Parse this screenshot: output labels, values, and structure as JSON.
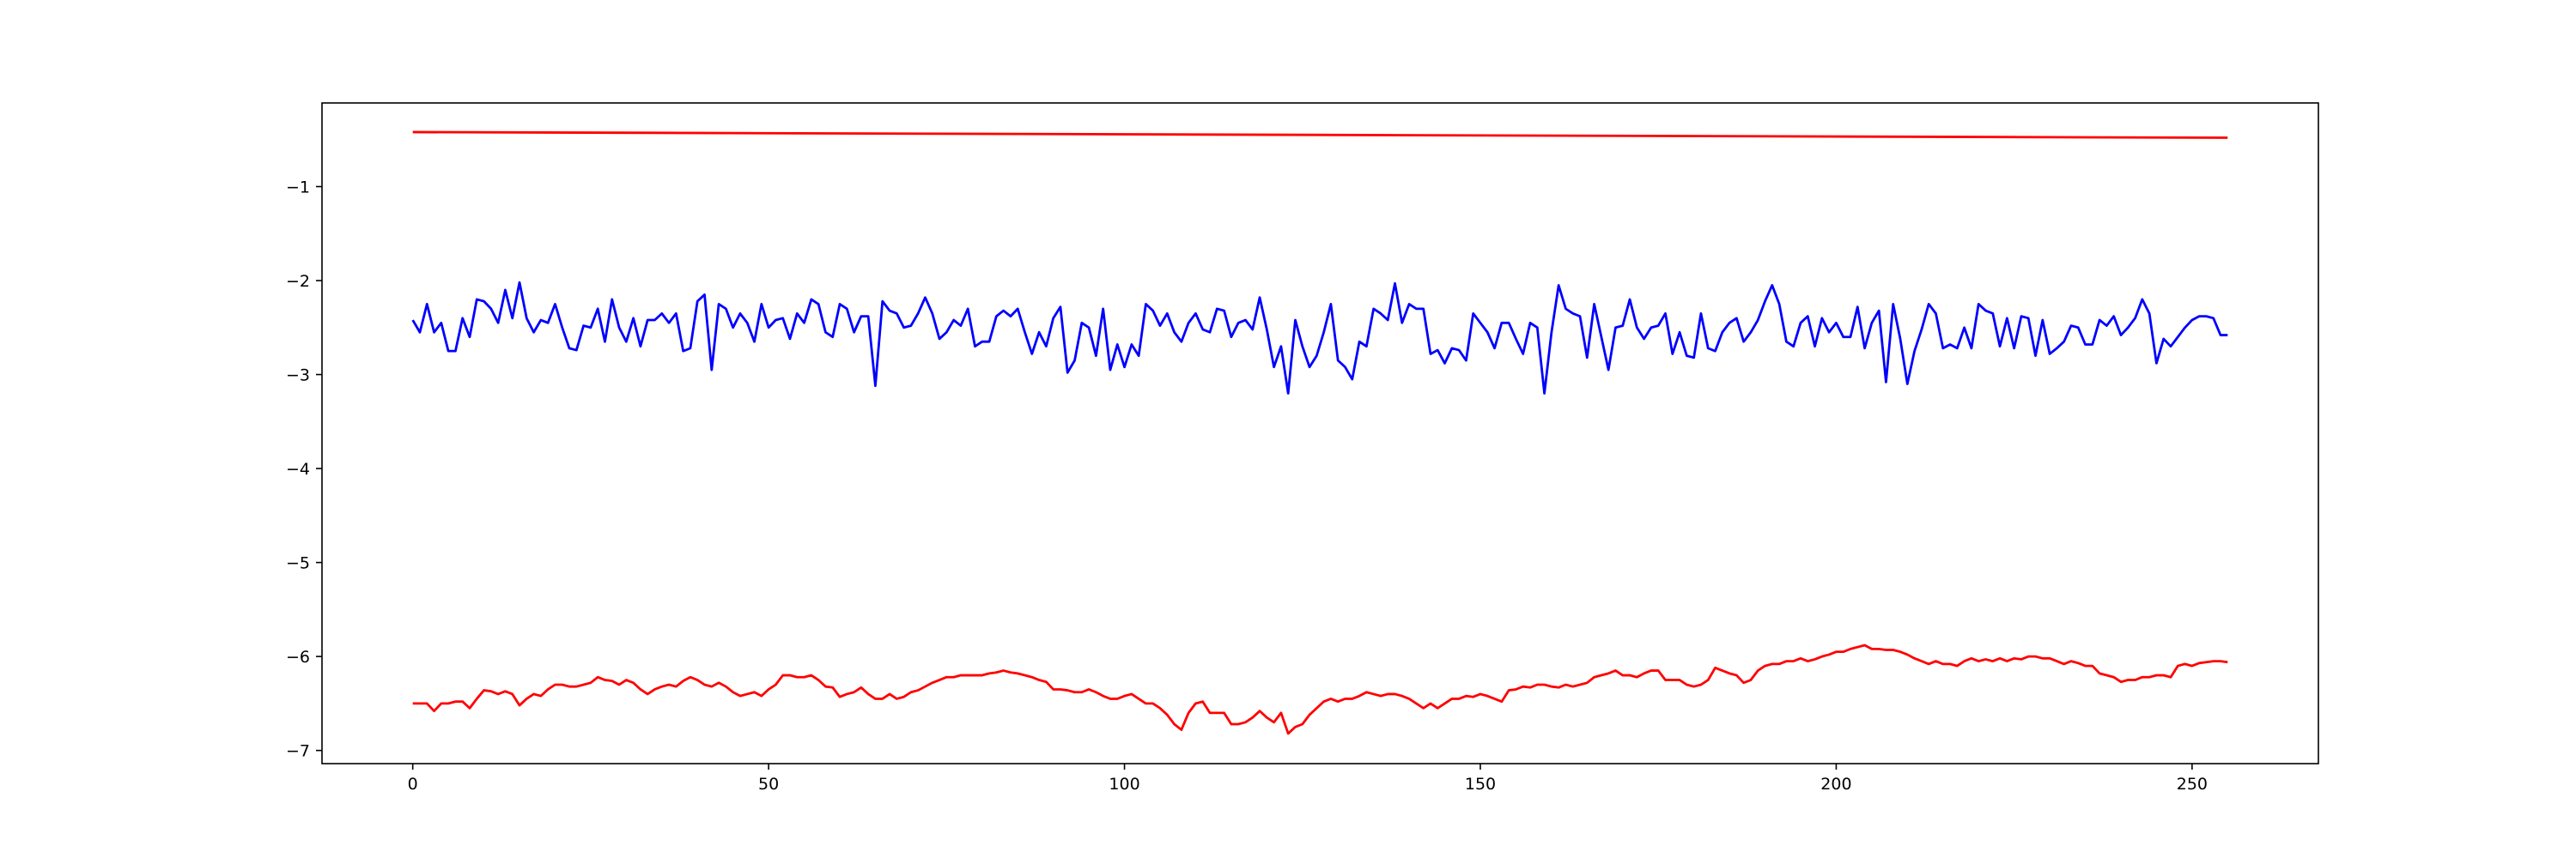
{
  "chart_data": {
    "type": "line",
    "x": [
      0,
      1,
      2,
      3,
      4,
      5,
      6,
      7,
      8,
      9,
      10,
      11,
      12,
      13,
      14,
      15,
      16,
      17,
      18,
      19,
      20,
      21,
      22,
      23,
      24,
      25,
      26,
      27,
      28,
      29,
      30,
      31,
      32,
      33,
      34,
      35,
      36,
      37,
      38,
      39,
      40,
      41,
      42,
      43,
      44,
      45,
      46,
      47,
      48,
      49,
      50,
      51,
      52,
      53,
      54,
      55,
      56,
      57,
      58,
      59,
      60,
      61,
      62,
      63,
      64,
      65,
      66,
      67,
      68,
      69,
      70,
      71,
      72,
      73,
      74,
      75,
      76,
      77,
      78,
      79,
      80,
      81,
      82,
      83,
      84,
      85,
      86,
      87,
      88,
      89,
      90,
      91,
      92,
      93,
      94,
      95,
      96,
      97,
      98,
      99,
      100,
      101,
      102,
      103,
      104,
      105,
      106,
      107,
      108,
      109,
      110,
      111,
      112,
      113,
      114,
      115,
      116,
      117,
      118,
      119,
      120,
      121,
      122,
      123,
      124,
      125,
      126,
      127,
      128,
      129,
      130,
      131,
      132,
      133,
      134,
      135,
      136,
      137,
      138,
      139,
      140,
      141,
      142,
      143,
      144,
      145,
      146,
      147,
      148,
      149,
      150,
      151,
      152,
      153,
      154,
      155,
      156,
      157,
      158,
      159,
      160,
      161,
      162,
      163,
      164,
      165,
      166,
      167,
      168,
      169,
      170,
      171,
      172,
      173,
      174,
      175,
      176,
      177,
      178,
      179,
      180,
      181,
      182,
      183,
      184,
      185,
      186,
      187,
      188,
      189,
      190,
      191,
      192,
      193,
      194,
      195,
      196,
      197,
      198,
      199,
      200,
      201,
      202,
      203,
      204,
      205,
      206,
      207,
      208,
      209,
      210,
      211,
      212,
      213,
      214,
      215,
      216,
      217,
      218,
      219,
      220,
      221,
      222,
      223,
      224,
      225,
      226,
      227,
      228,
      229,
      230,
      231,
      232,
      233,
      234,
      235,
      236,
      237,
      238,
      239,
      240,
      241,
      242,
      243,
      244,
      245,
      246,
      247,
      248,
      249,
      250,
      251,
      252,
      253,
      254,
      255
    ],
    "series": [
      {
        "color": "#ff0000",
        "x": [
          0,
          255
        ],
        "values": [
          -0.42,
          -0.48
        ]
      },
      {
        "color": "#0000ff",
        "values": [
          -2.42,
          -2.55,
          -2.25,
          -2.55,
          -2.45,
          -2.75,
          -2.75,
          -2.4,
          -2.6,
          -2.2,
          -2.22,
          -2.3,
          -2.45,
          -2.1,
          -2.4,
          -2.02,
          -2.4,
          -2.55,
          -2.42,
          -2.45,
          -2.25,
          -2.5,
          -2.72,
          -2.74,
          -2.48,
          -2.5,
          -2.3,
          -2.65,
          -2.2,
          -2.5,
          -2.65,
          -2.4,
          -2.7,
          -2.42,
          -2.42,
          -2.35,
          -2.45,
          -2.35,
          -2.75,
          -2.72,
          -2.22,
          -2.15,
          -2.95,
          -2.25,
          -2.3,
          -2.5,
          -2.35,
          -2.45,
          -2.65,
          -2.25,
          -2.5,
          -2.42,
          -2.4,
          -2.62,
          -2.35,
          -2.45,
          -2.2,
          -2.25,
          -2.55,
          -2.6,
          -2.25,
          -2.3,
          -2.55,
          -2.38,
          -2.38,
          -3.12,
          -2.22,
          -2.32,
          -2.35,
          -2.5,
          -2.48,
          -2.35,
          -2.18,
          -2.35,
          -2.62,
          -2.55,
          -2.42,
          -2.48,
          -2.3,
          -2.7,
          -2.65,
          -2.65,
          -2.38,
          -2.32,
          -2.38,
          -2.3,
          -2.55,
          -2.78,
          -2.55,
          -2.7,
          -2.4,
          -2.28,
          -2.98,
          -2.85,
          -2.45,
          -2.5,
          -2.8,
          -2.3,
          -2.95,
          -2.68,
          -2.92,
          -2.68,
          -2.8,
          -2.25,
          -2.32,
          -2.48,
          -2.35,
          -2.55,
          -2.65,
          -2.45,
          -2.35,
          -2.52,
          -2.55,
          -2.3,
          -2.32,
          -2.6,
          -2.45,
          -2.42,
          -2.52,
          -2.18,
          -2.52,
          -2.92,
          -2.7,
          -3.2,
          -2.42,
          -2.7,
          -2.92,
          -2.8,
          -2.55,
          -2.25,
          -2.85,
          -2.92,
          -3.05,
          -2.65,
          -2.7,
          -2.3,
          -2.35,
          -2.42,
          -2.03,
          -2.45,
          -2.25,
          -2.3,
          -2.3,
          -2.78,
          -2.74,
          -2.88,
          -2.72,
          -2.74,
          -2.85,
          -2.35,
          -2.45,
          -2.55,
          -2.72,
          -2.45,
          -2.45,
          -2.62,
          -2.78,
          -2.45,
          -2.5,
          -3.2,
          -2.55,
          -2.05,
          -2.3,
          -2.35,
          -2.38,
          -2.82,
          -2.25,
          -2.6,
          -2.95,
          -2.5,
          -2.48,
          -2.2,
          -2.5,
          -2.62,
          -2.5,
          -2.48,
          -2.35,
          -2.78,
          -2.55,
          -2.8,
          -2.82,
          -2.35,
          -2.72,
          -2.75,
          -2.55,
          -2.45,
          -2.4,
          -2.65,
          -2.55,
          -2.42,
          -2.22,
          -2.05,
          -2.25,
          -2.65,
          -2.7,
          -2.45,
          -2.38,
          -2.7,
          -2.4,
          -2.55,
          -2.45,
          -2.6,
          -2.6,
          -2.28,
          -2.72,
          -2.45,
          -2.32,
          -3.08,
          -2.25,
          -2.62,
          -3.1,
          -2.75,
          -2.52,
          -2.25,
          -2.35,
          -2.72,
          -2.68,
          -2.72,
          -2.5,
          -2.72,
          -2.25,
          -2.32,
          -2.35,
          -2.7,
          -2.4,
          -2.72,
          -2.38,
          -2.4,
          -2.8,
          -2.42,
          -2.78,
          -2.72,
          -2.65,
          -2.48,
          -2.5,
          -2.68,
          -2.68,
          -2.42,
          -2.48,
          -2.38,
          -2.58,
          -2.5,
          -2.4,
          -2.2,
          -2.35,
          -2.88,
          -2.62,
          -2.7,
          -2.6,
          -2.5,
          -2.42,
          -2.38,
          -2.38,
          -2.4,
          -2.58,
          -2.58
        ]
      },
      {
        "color": "#ff0000",
        "values": [
          -6.5,
          -6.5,
          -6.5,
          -6.58,
          -6.5,
          -6.5,
          -6.48,
          -6.48,
          -6.55,
          -6.45,
          -6.36,
          -6.37,
          -6.4,
          -6.37,
          -6.4,
          -6.52,
          -6.45,
          -6.4,
          -6.42,
          -6.35,
          -6.3,
          -6.3,
          -6.32,
          -6.32,
          -6.3,
          -6.28,
          -6.22,
          -6.25,
          -6.26,
          -6.3,
          -6.25,
          -6.28,
          -6.35,
          -6.4,
          -6.35,
          -6.32,
          -6.3,
          -6.32,
          -6.26,
          -6.22,
          -6.25,
          -6.3,
          -6.32,
          -6.28,
          -6.32,
          -6.38,
          -6.42,
          -6.4,
          -6.38,
          -6.42,
          -6.35,
          -6.3,
          -6.2,
          -6.2,
          -6.22,
          -6.22,
          -6.2,
          -6.25,
          -6.32,
          -6.33,
          -6.43,
          -6.4,
          -6.38,
          -6.33,
          -6.4,
          -6.45,
          -6.45,
          -6.4,
          -6.45,
          -6.43,
          -6.38,
          -6.36,
          -6.32,
          -6.28,
          -6.25,
          -6.22,
          -6.22,
          -6.2,
          -6.2,
          -6.2,
          -6.2,
          -6.18,
          -6.17,
          -6.15,
          -6.17,
          -6.18,
          -6.2,
          -6.22,
          -6.25,
          -6.27,
          -6.35,
          -6.35,
          -6.36,
          -6.38,
          -6.38,
          -6.35,
          -6.38,
          -6.42,
          -6.45,
          -6.45,
          -6.42,
          -6.4,
          -6.45,
          -6.5,
          -6.5,
          -6.55,
          -6.62,
          -6.72,
          -6.78,
          -6.6,
          -6.5,
          -6.48,
          -6.6,
          -6.6,
          -6.6,
          -6.72,
          -6.72,
          -6.7,
          -6.65,
          -6.58,
          -6.65,
          -6.7,
          -6.6,
          -6.82,
          -6.75,
          -6.72,
          -6.62,
          -6.55,
          -6.48,
          -6.45,
          -6.48,
          -6.45,
          -6.45,
          -6.42,
          -6.38,
          -6.4,
          -6.42,
          -6.4,
          -6.4,
          -6.42,
          -6.45,
          -6.5,
          -6.55,
          -6.5,
          -6.55,
          -6.5,
          -6.45,
          -6.45,
          -6.42,
          -6.43,
          -6.4,
          -6.42,
          -6.45,
          -6.48,
          -6.36,
          -6.35,
          -6.32,
          -6.33,
          -6.3,
          -6.3,
          -6.32,
          -6.33,
          -6.3,
          -6.32,
          -6.3,
          -6.28,
          -6.22,
          -6.2,
          -6.18,
          -6.15,
          -6.2,
          -6.2,
          -6.22,
          -6.18,
          -6.15,
          -6.15,
          -6.25,
          -6.25,
          -6.25,
          -6.3,
          -6.32,
          -6.3,
          -6.25,
          -6.12,
          -6.15,
          -6.18,
          -6.2,
          -6.28,
          -6.25,
          -6.15,
          -6.1,
          -6.08,
          -6.08,
          -6.05,
          -6.05,
          -6.02,
          -6.05,
          -6.03,
          -6.0,
          -5.98,
          -5.95,
          -5.95,
          -5.92,
          -5.9,
          -5.88,
          -5.92,
          -5.92,
          -5.93,
          -5.93,
          -5.95,
          -5.98,
          -6.02,
          -6.05,
          -6.08,
          -6.05,
          -6.08,
          -6.08,
          -6.1,
          -6.05,
          -6.02,
          -6.05,
          -6.03,
          -6.05,
          -6.02,
          -6.05,
          -6.02,
          -6.03,
          -6.0,
          -6.0,
          -6.02,
          -6.02,
          -6.05,
          -6.08,
          -6.05,
          -6.07,
          -6.1,
          -6.1,
          -6.18,
          -6.2,
          -6.22,
          -6.27,
          -6.25,
          -6.25,
          -6.22,
          -6.22,
          -6.2,
          -6.2,
          -6.22,
          -6.1,
          -6.08,
          -6.1,
          -6.07,
          -6.06,
          -6.05,
          -6.05,
          -6.06
        ]
      }
    ],
    "xlim": [
      -12.75,
      267.75
    ],
    "ylim": [
      -7.14,
      -0.11
    ],
    "xticks": [
      0,
      50,
      100,
      150,
      200,
      250
    ],
    "yticks": [
      {
        "value": -7,
        "label": "−7"
      },
      {
        "value": -6,
        "label": "−6"
      },
      {
        "value": -5,
        "label": "−5"
      },
      {
        "value": -4,
        "label": "−4"
      },
      {
        "value": -3,
        "label": "−3"
      },
      {
        "value": -2,
        "label": "−2"
      },
      {
        "value": -1,
        "label": "−1"
      }
    ],
    "grid": false
  }
}
